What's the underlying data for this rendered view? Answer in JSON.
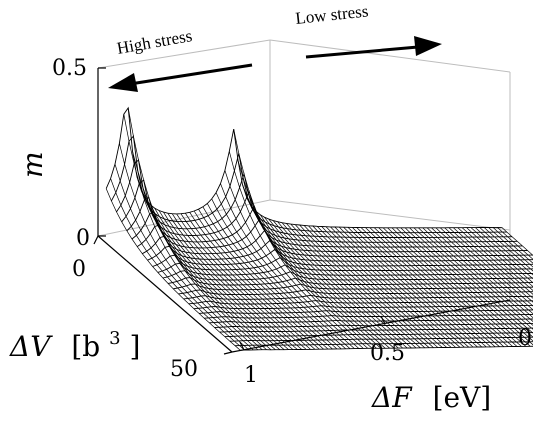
{
  "chart_data": {
    "type": "surface",
    "title": "",
    "x": {
      "label": "ΔF",
      "unit": "[eV]",
      "ticks": [
        "1",
        "0.5",
        "0"
      ],
      "range": [
        1.0,
        0.0
      ]
    },
    "y": {
      "label": "ΔV",
      "unit_base": "[b",
      "unit_sup": "3",
      "unit_close": "]",
      "ticks": [
        "0",
        "50"
      ],
      "range": [
        0,
        50
      ]
    },
    "z": {
      "label": "m",
      "ticks": [
        "0",
        "0.5"
      ],
      "range": [
        0,
        0.5
      ]
    },
    "peaks": [
      {
        "dF": 0.93,
        "m_max": 0.4
      },
      {
        "dF": 0.67,
        "m_max": 0.3
      }
    ],
    "annotations": {
      "high_stress": "High stress",
      "low_stress": "Low stress"
    }
  }
}
